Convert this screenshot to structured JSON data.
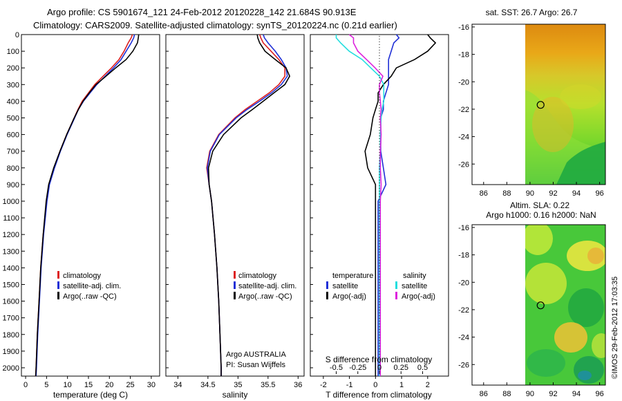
{
  "header": {
    "line1": "Argo profile: CS 5901674_121 24-Feb-2012 20120228_142 21.684S 90.913E",
    "line2": "Climatology: CARS2009. Satellite-adjusted climatology: synTS_20120224.nc (0.21d earlier)"
  },
  "footer": {
    "owner": "Argo AUSTRALIA",
    "pi": "PI: Susan Wijffels",
    "stamp": "©IMOS 29-Feb-2012 17:03:35"
  },
  "colors": {
    "climatology": "#dd1f1f",
    "satellite": "#1f2fd6",
    "argo": "#000000",
    "sal_satellite": "#22dede",
    "sal_argo": "#dd22dd"
  },
  "chart_data": [
    {
      "type": "line",
      "title": "",
      "xlabel": "temperature (deg C)",
      "ylabel": "",
      "xlim": [
        -1,
        32
      ],
      "ylim": [
        2050,
        0
      ],
      "xticks": [
        "0",
        "5",
        "10",
        "15",
        "20",
        "25",
        "30"
      ],
      "yticks": [
        "0",
        "100",
        "200",
        "300",
        "400",
        "500",
        "600",
        "700",
        "800",
        "900",
        "1000",
        "1100",
        "1200",
        "1300",
        "1400",
        "1500",
        "1600",
        "1700",
        "1800",
        "1900",
        "2000"
      ],
      "y": [
        0,
        20,
        50,
        100,
        150,
        200,
        250,
        300,
        350,
        400,
        450,
        500,
        600,
        700,
        800,
        900,
        1000,
        1200,
        1400,
        1600,
        1800,
        2000,
        2050
      ],
      "series": [
        {
          "name": "climatology",
          "x": [
            25.5,
            25.2,
            24.5,
            23.5,
            22.3,
            20.5,
            18.5,
            16.5,
            15.0,
            13.5,
            12.5,
            11.6,
            9.8,
            8.2,
            6.8,
            5.6,
            5.0,
            4.2,
            3.6,
            3.2,
            2.8,
            2.5,
            2.4
          ]
        },
        {
          "name": "satellite-adj. clim.",
          "x": [
            26.0,
            25.8,
            25.2,
            24.0,
            22.8,
            21.0,
            19.0,
            17.0,
            15.4,
            13.8,
            12.6,
            11.7,
            9.9,
            8.3,
            6.9,
            5.7,
            5.1,
            4.3,
            3.7,
            3.3,
            2.9,
            2.6,
            2.5
          ]
        },
        {
          "name": "Argo(..raw -QC)",
          "x": [
            27.0,
            26.9,
            26.7,
            25.6,
            24.0,
            21.5,
            19.2,
            16.8,
            15.2,
            13.7,
            12.6,
            11.6,
            9.8,
            8.2,
            6.7,
            5.5,
            4.9,
            4.2,
            3.6,
            3.2,
            2.8,
            2.5,
            2.4
          ]
        }
      ],
      "legend": [
        "climatology",
        "satellite-adj. clim.",
        "Argo(..raw -QC)"
      ]
    },
    {
      "type": "line",
      "title": "",
      "xlabel": "salinity",
      "ylabel": "",
      "xlim": [
        33.8,
        36.1
      ],
      "ylim": [
        2050,
        0
      ],
      "xticks": [
        "34",
        "34.5",
        "35",
        "35.5",
        "36"
      ],
      "y": [
        0,
        20,
        50,
        100,
        150,
        200,
        250,
        300,
        350,
        400,
        450,
        500,
        600,
        700,
        800,
        900,
        1000,
        1200,
        1400,
        1600,
        1800,
        2000,
        2050
      ],
      "series": [
        {
          "name": "climatology",
          "x": [
            35.36,
            35.38,
            35.42,
            35.55,
            35.68,
            35.78,
            35.78,
            35.68,
            35.52,
            35.32,
            35.12,
            34.95,
            34.68,
            34.53,
            34.48,
            34.52,
            34.56,
            34.61,
            34.65,
            34.68,
            34.7,
            34.72,
            34.72
          ]
        },
        {
          "name": "satellite-adj. clim.",
          "x": [
            35.42,
            35.44,
            35.5,
            35.62,
            35.72,
            35.8,
            35.82,
            35.72,
            35.56,
            35.36,
            35.15,
            34.97,
            34.69,
            34.54,
            34.49,
            34.52,
            34.56,
            34.61,
            34.65,
            34.68,
            34.7,
            34.72,
            34.72
          ]
        },
        {
          "name": "Argo(..raw -QC)",
          "x": [
            35.32,
            35.33,
            35.36,
            35.45,
            35.62,
            35.8,
            35.86,
            35.78,
            35.6,
            35.42,
            35.24,
            35.05,
            34.76,
            34.58,
            34.51,
            34.52,
            34.56,
            34.61,
            34.65,
            34.68,
            34.7,
            34.72,
            34.72
          ]
        }
      ],
      "legend": [
        "climatology",
        "satellite-adj. clim.",
        "Argo(..raw -QC)"
      ]
    },
    {
      "type": "line",
      "title": "S difference from climatology",
      "xlabel": "T difference from climatology",
      "ylabel": "",
      "xlim": [
        -2.5,
        2.8
      ],
      "ylim": [
        2050,
        0
      ],
      "xticks_bottom": [
        "-2",
        "-1",
        "0",
        "1",
        "2"
      ],
      "xticks_top": [
        "-0.5",
        "-0.25",
        "0",
        "0.25",
        "0.5"
      ],
      "legend_headers": [
        "temperature",
        "salinity"
      ],
      "legend": [
        "satellite",
        "Argo(-adj)",
        "satellite",
        "Argo(-adj)"
      ],
      "y": [
        0,
        20,
        50,
        100,
        150,
        200,
        250,
        300,
        350,
        400,
        450,
        500,
        600,
        700,
        800,
        900,
        1000,
        1200,
        1400,
        1600,
        1800,
        2000,
        2050
      ],
      "series": [
        {
          "name": "satellite",
          "quantity": "temperature",
          "x": [
            0.8,
            0.9,
            0.7,
            0.6,
            0.5,
            0.5,
            0.5,
            0.5,
            0.4,
            0.3,
            0.3,
            0.2,
            0.2,
            0.2,
            0.3,
            0.4,
            0.1,
            0.1,
            0.1,
            0.1,
            0.1,
            0.1,
            0.1
          ]
        },
        {
          "name": "Argo(-adj)",
          "quantity": "temperature",
          "x": [
            2.0,
            2.1,
            2.3,
            2.0,
            1.5,
            0.8,
            0.6,
            0.3,
            0.1,
            0.1,
            0.0,
            -0.1,
            -0.2,
            -0.4,
            -0.3,
            0.0,
            0.0,
            0.0,
            0.0,
            0.0,
            0.0,
            0.0,
            0.0
          ]
        },
        {
          "name": "satellite",
          "quantity": "salinity",
          "x": [
            -0.5,
            -0.5,
            -0.45,
            -0.35,
            -0.2,
            -0.1,
            0.0,
            0.05,
            0.05,
            0.05,
            0.03,
            0.02,
            0.01,
            0.01,
            0.0,
            0.0,
            0.0,
            0.0,
            0.0,
            0.0,
            0.0,
            0.0,
            0.0
          ]
        },
        {
          "name": "Argo(-adj)",
          "quantity": "salinity",
          "x": [
            -0.35,
            -0.3,
            -0.3,
            -0.25,
            -0.15,
            -0.05,
            0.04,
            0.0,
            0.0,
            0.01,
            0.02,
            0.01,
            0.02,
            0.01,
            0.01,
            0.02,
            0.01,
            0.01,
            0.01,
            0.01,
            0.01,
            0.01,
            0.01
          ]
        }
      ]
    },
    {
      "type": "heatmap",
      "title": "sat. SST: 26.7 Argo: 26.7",
      "xlabel": "",
      "ylabel": "",
      "xlim": [
        85,
        96.5
      ],
      "ylim": [
        -27.5,
        -15.8
      ],
      "xticks": [
        "86",
        "88",
        "90",
        "92",
        "94",
        "96"
      ],
      "yticks": [
        "-16",
        "-18",
        "-20",
        "-22",
        "-24",
        "-26"
      ],
      "marker": {
        "lon": 90.913,
        "lat": -21.684
      }
    },
    {
      "type": "heatmap",
      "title": "Altim. SLA: 0.22",
      "subtitle": "Argo h1000: 0.16 h2000: NaN",
      "xlabel": "",
      "ylabel": "",
      "xlim": [
        85,
        96.5
      ],
      "ylim": [
        -27.5,
        -15.8
      ],
      "xticks": [
        "86",
        "88",
        "90",
        "92",
        "94",
        "96"
      ],
      "yticks": [
        "-16",
        "-18",
        "-20",
        "-22",
        "-24",
        "-26"
      ],
      "marker": {
        "lon": 90.913,
        "lat": -21.684
      }
    }
  ]
}
